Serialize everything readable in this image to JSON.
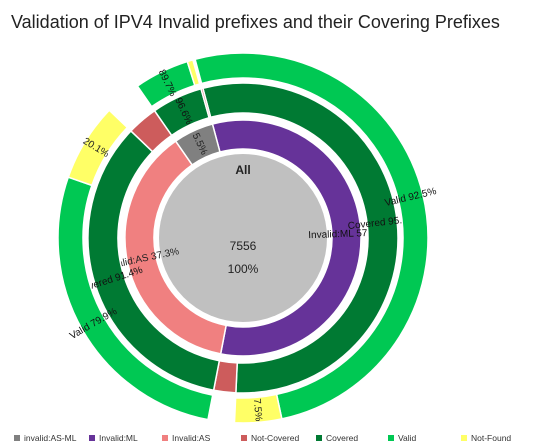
{
  "title": "Validation of IPV4 Invalid prefixes and their Covering Prefixes",
  "chart_data": {
    "type": "sunburst",
    "center": {
      "label": "All",
      "value": "7556",
      "percent": "100%"
    },
    "colors": {
      "invalid:AS-ML": "#808080",
      "Invalid:ML": "#663399",
      "Invalid:AS": "#f08080",
      "Not-Covered": "#cd5c5c",
      "Covered": "#007a33",
      "Valid": "#00c853",
      "Not-Found": "#ffff66",
      "center": "#c0c0c0"
    },
    "rings": [
      {
        "name": "ring1",
        "segments": [
          {
            "series": "Invalid:ML",
            "from": 0,
            "to": 57.2,
            "label": "Invalid:ML 57.2%"
          },
          {
            "series": "Invalid:AS",
            "from": 57.2,
            "to": 94.5,
            "label": "Invalid:AS 37.3%"
          },
          {
            "series": "invalid:AS-ML",
            "from": 94.5,
            "to": 100,
            "label": "5.5%"
          }
        ]
      },
      {
        "name": "ring2",
        "segments": [
          {
            "series": "Covered",
            "from": 0,
            "to": 54.9,
            "label": "Covered 95.9%"
          },
          {
            "series": "Not-Covered",
            "from": 54.9,
            "to": 57.2,
            "label": ""
          },
          {
            "series": "Covered",
            "from": 57.2,
            "to": 91.3,
            "label": "Covered 91.4%"
          },
          {
            "series": "Not-Covered",
            "from": 91.3,
            "to": 94.5,
            "label": ""
          },
          {
            "series": "Covered",
            "from": 94.5,
            "to": 99.8,
            "label": "96.6%"
          },
          {
            "series": "Not-Covered",
            "from": 99.8,
            "to": 100,
            "label": ""
          }
        ]
      },
      {
        "name": "ring3",
        "segments": [
          {
            "series": "Valid",
            "from": 0,
            "to": 50.8,
            "label": "Valid 92.5%"
          },
          {
            "series": "Not-Found",
            "from": 50.8,
            "to": 54.9,
            "label": "7.5%"
          },
          {
            "series": "Valid",
            "from": 57.2,
            "to": 84.5,
            "label": "Valid 79.9%"
          },
          {
            "series": "Not-Found",
            "from": 84.5,
            "to": 91.3,
            "label": "20.1%"
          },
          {
            "series": "Valid",
            "from": 94.5,
            "to": 99.3,
            "label": "89.7%"
          },
          {
            "series": "Not-Found",
            "from": 99.3,
            "to": 99.8,
            "label": ""
          }
        ]
      }
    ],
    "legend": [
      {
        "label": "invalid:AS-ML",
        "series": "invalid:AS-ML"
      },
      {
        "label": "Invalid:ML",
        "series": "Invalid:ML"
      },
      {
        "label": "Invalid:AS",
        "series": "Invalid:AS"
      },
      {
        "label": "Not-Covered",
        "series": "Not-Covered"
      },
      {
        "label": "Covered",
        "series": "Covered"
      },
      {
        "label": "Valid",
        "series": "Valid"
      },
      {
        "label": "Not-Found",
        "series": "Not-Found"
      }
    ],
    "legend_position": "bottom"
  }
}
